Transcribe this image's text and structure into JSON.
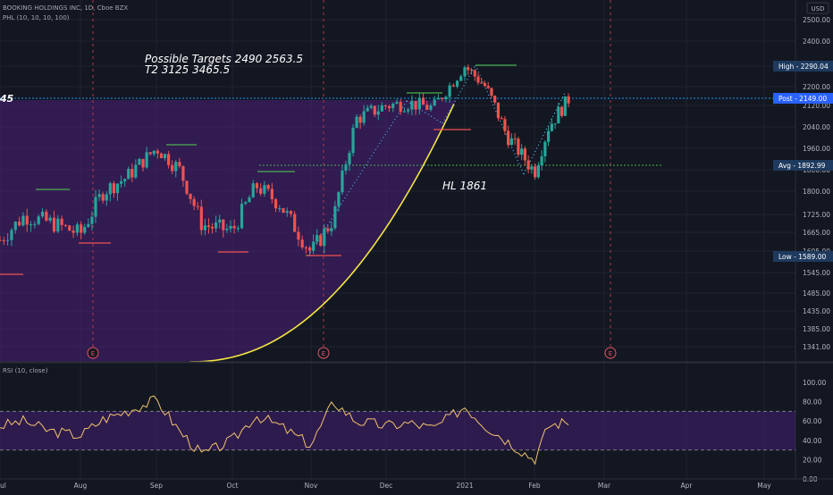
{
  "header": {
    "symbol": "BOOKING HOLDINGS INC, 1D, Cboe BZX",
    "indicator": "PHL (10, 10, 10, 100)",
    "currency": "USD"
  },
  "annotations": {
    "targets_line1": "Possible Targets  2490    2563.5",
    "targets_line2": "T2  3125   3465.5",
    "hl": "HL  1861",
    "left_clip": "45"
  },
  "earnings_marker": "E",
  "rsi_label": "RSI (10, close)",
  "price_tags": [
    {
      "label": "High",
      "value": "2290.04",
      "price": 2290.04,
      "color": "#1e3a5f"
    },
    {
      "label": "Post",
      "value": "2149.00",
      "price": 2149.0,
      "color": "#2962ff"
    },
    {
      "label": "Avg",
      "value": "1892.99",
      "price": 1892.99,
      "color": "#1e3a5f"
    },
    {
      "label": "Low",
      "value": "1589.00",
      "price": 1589.0,
      "color": "#1e3a5f"
    }
  ],
  "colors": {
    "up": "#26a69a",
    "down": "#ef5350",
    "purple_fill": "#4a1f78",
    "curve": "#f5e642",
    "avg_line": "#4caf50",
    "post_line": "#2196f3",
    "rsi_line": "#f0c36d"
  },
  "chart_data": {
    "type": "candlestick",
    "x_ticks": [
      "ul",
      "Aug",
      "Sep",
      "Oct",
      "Nov",
      "Dec",
      "2021",
      "Feb",
      "Mar",
      "Apr",
      "May"
    ],
    "y_ticks": [
      2500.0,
      2400.0,
      2290.04,
      2200.0,
      2149.0,
      2120.0,
      2040.0,
      1960.0,
      1892.99,
      1880.0,
      1800.0,
      1725.0,
      1665.0,
      1605.0,
      1589.0,
      1545.0,
      1485.0,
      1435.0,
      1385.0,
      1341.0,
      1300.0
    ],
    "y_tick_labels": [
      "2500.00",
      "2400.00",
      "2200.00",
      "2120.00",
      "2040.00",
      "1960.00",
      "1880.00",
      "1800.00",
      "1725.00",
      "1665.00",
      "1605.00",
      "1545.00",
      "1485.00",
      "1435.00",
      "1385.00",
      "1341.00"
    ],
    "ylim": [
      1300,
      2560
    ],
    "close_series": {
      "name": "",
      "x_months": [
        0,
        0.3,
        0.6,
        1.0,
        1.3,
        1.6,
        2.0,
        2.3,
        2.6,
        3.0,
        3.3,
        3.6,
        4.0,
        4.3,
        4.6,
        5.0,
        5.3,
        5.6,
        6.0,
        6.3,
        6.6,
        7.0,
        7.2,
        7.5
      ],
      "values": [
        1640,
        1720,
        1700,
        1660,
        1800,
        1850,
        1960,
        1880,
        1690,
        1670,
        1820,
        1760,
        1600,
        1710,
        2070,
        2120,
        2130,
        2110,
        2290,
        2200,
        2010,
        1870,
        2040,
        2149
      ]
    },
    "levels": {
      "high": 2290.04,
      "post": 2149.0,
      "avg": 1892.99,
      "low": 1589.0,
      "hl": 1861
    },
    "rsi": {
      "ylim": [
        0,
        100
      ],
      "y_ticks": [
        0,
        20,
        40,
        60,
        80,
        100
      ],
      "y_tick_labels": [
        "0.00",
        "20.00",
        "40.00",
        "60.00",
        "80.00",
        "100.00"
      ],
      "bands": [
        30,
        70
      ],
      "x_months": [
        0,
        0.3,
        0.6,
        1.0,
        1.3,
        1.6,
        2.0,
        2.3,
        2.6,
        3.0,
        3.3,
        3.6,
        4.0,
        4.3,
        4.6,
        5.0,
        5.3,
        5.6,
        6.0,
        6.3,
        6.6,
        7.0,
        7.2,
        7.5
      ],
      "values": [
        55,
        60,
        50,
        45,
        62,
        70,
        82,
        50,
        25,
        40,
        66,
        55,
        35,
        80,
        60,
        55,
        58,
        52,
        75,
        55,
        40,
        20,
        55,
        60
      ]
    }
  }
}
